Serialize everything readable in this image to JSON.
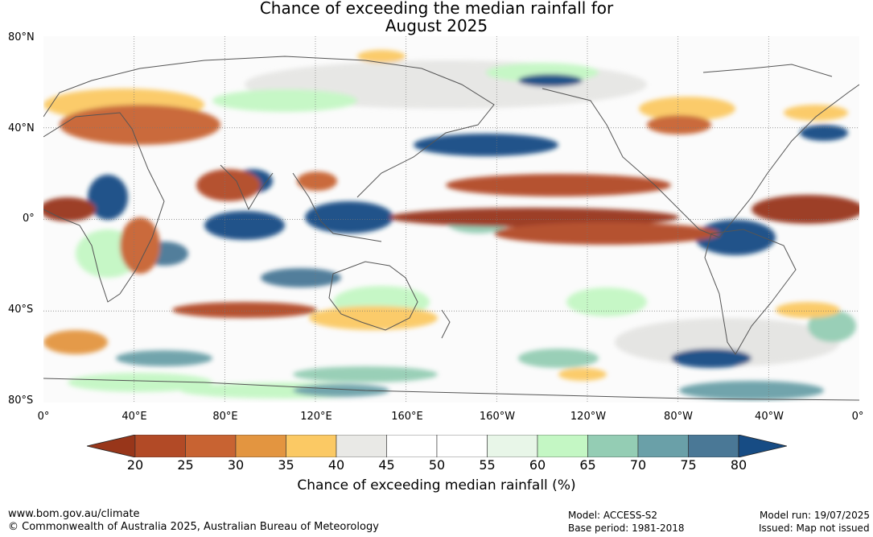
{
  "title": {
    "line1": "Chance of exceeding the median rainfall for",
    "line2": "August 2025"
  },
  "lat_labels": [
    "80°N",
    "40°N",
    "0°",
    "40°S",
    "80°S"
  ],
  "lon_labels": [
    "0°",
    "40°E",
    "80°E",
    "120°E",
    "160°E",
    "160°W",
    "120°W",
    "80°W",
    "40°W",
    "0°"
  ],
  "colorbar": {
    "ticks": [
      "20",
      "25",
      "30",
      "35",
      "40",
      "45",
      "50",
      "55",
      "60",
      "65",
      "70",
      "75",
      "80"
    ],
    "colors": [
      "#98361a",
      "#b24a26",
      "#c86332",
      "#e39540",
      "#fbc964",
      "#e9e9e6",
      "#ffffff",
      "#ffffff",
      "#e8f6e8",
      "#c4f7c4",
      "#94cdb4",
      "#6aa0a8",
      "#4a7896",
      "#174c84"
    ],
    "title": "Chance of exceeding median rainfall (%)"
  },
  "footer": {
    "url": "www.bom.gov.au/climate",
    "copyright": "© Commonwealth of Australia 2025, Australian Bureau of Meteorology",
    "model": "Model: ACCESS-S2",
    "base_period": "Base period: 1981-2018",
    "model_run": "Model run: 19/07/2025",
    "issued": "Issued: Map not issued"
  }
}
